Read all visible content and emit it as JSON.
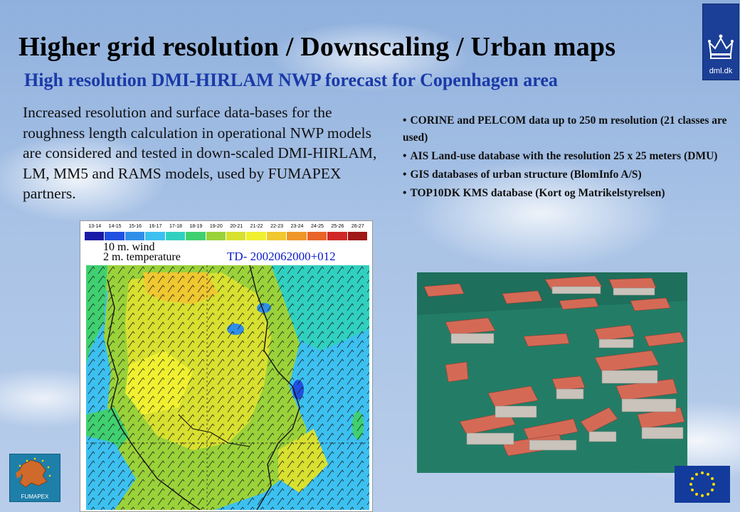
{
  "slide": {
    "title": "Higher grid resolution / Downscaling / Urban maps",
    "subtitle": "High resolution DMI-HIRLAM NWP forecast for Copenhagen area",
    "intro": "Increased resolution and surface data-bases for the roughness length calculation in operational NWP models are considered and tested in down-scaled DMI-HIRLAM, LM, MM5 and RAMS models, used by FUMAPEX partners.",
    "bullets": [
      "CORINE  and PELCOM data up to 250 m resolution (21 classes are used)",
      "AIS Land-use database with the resolution 25 x 25 meters (DMU)",
      "GIS databases of urban structure (BlomInfo A/S)",
      "TOP10DK KMS database (Kort og Matrikelstyrelsen)"
    ]
  },
  "logos": {
    "dmi": "dml.dk",
    "fumapex": "FUMAPEX"
  },
  "map": {
    "legend_ticks": [
      "13-14",
      "14-15",
      "15-16",
      "16-17",
      "17-18",
      "18-19",
      "19-20",
      "20-21",
      "21-22",
      "22-23",
      "23-24",
      "24-25",
      "25-26",
      "26-27"
    ],
    "legend_colors": [
      "#1a1aa8",
      "#2050e0",
      "#2f8fe8",
      "#3cc0f0",
      "#30d0c0",
      "#40d070",
      "#9ad23a",
      "#d8e030",
      "#f0f030",
      "#f0c830",
      "#f09628",
      "#e86428",
      "#d02828",
      "#a01818"
    ],
    "wind_label": "10 m. wind",
    "temp_label": "2 m. temperature",
    "timestamp": "TD- 2002062000+012"
  },
  "icons": {
    "dmi_logo": "crown-icon",
    "eu_flag": "eu-stars-icon",
    "fumapex_logo": "europe-map-icon"
  },
  "colors": {
    "subtitle": "#1a3aa8",
    "dmi_blue": "#1b3f96",
    "eu_blue": "#123b9c",
    "eu_star": "#ffdd00"
  }
}
